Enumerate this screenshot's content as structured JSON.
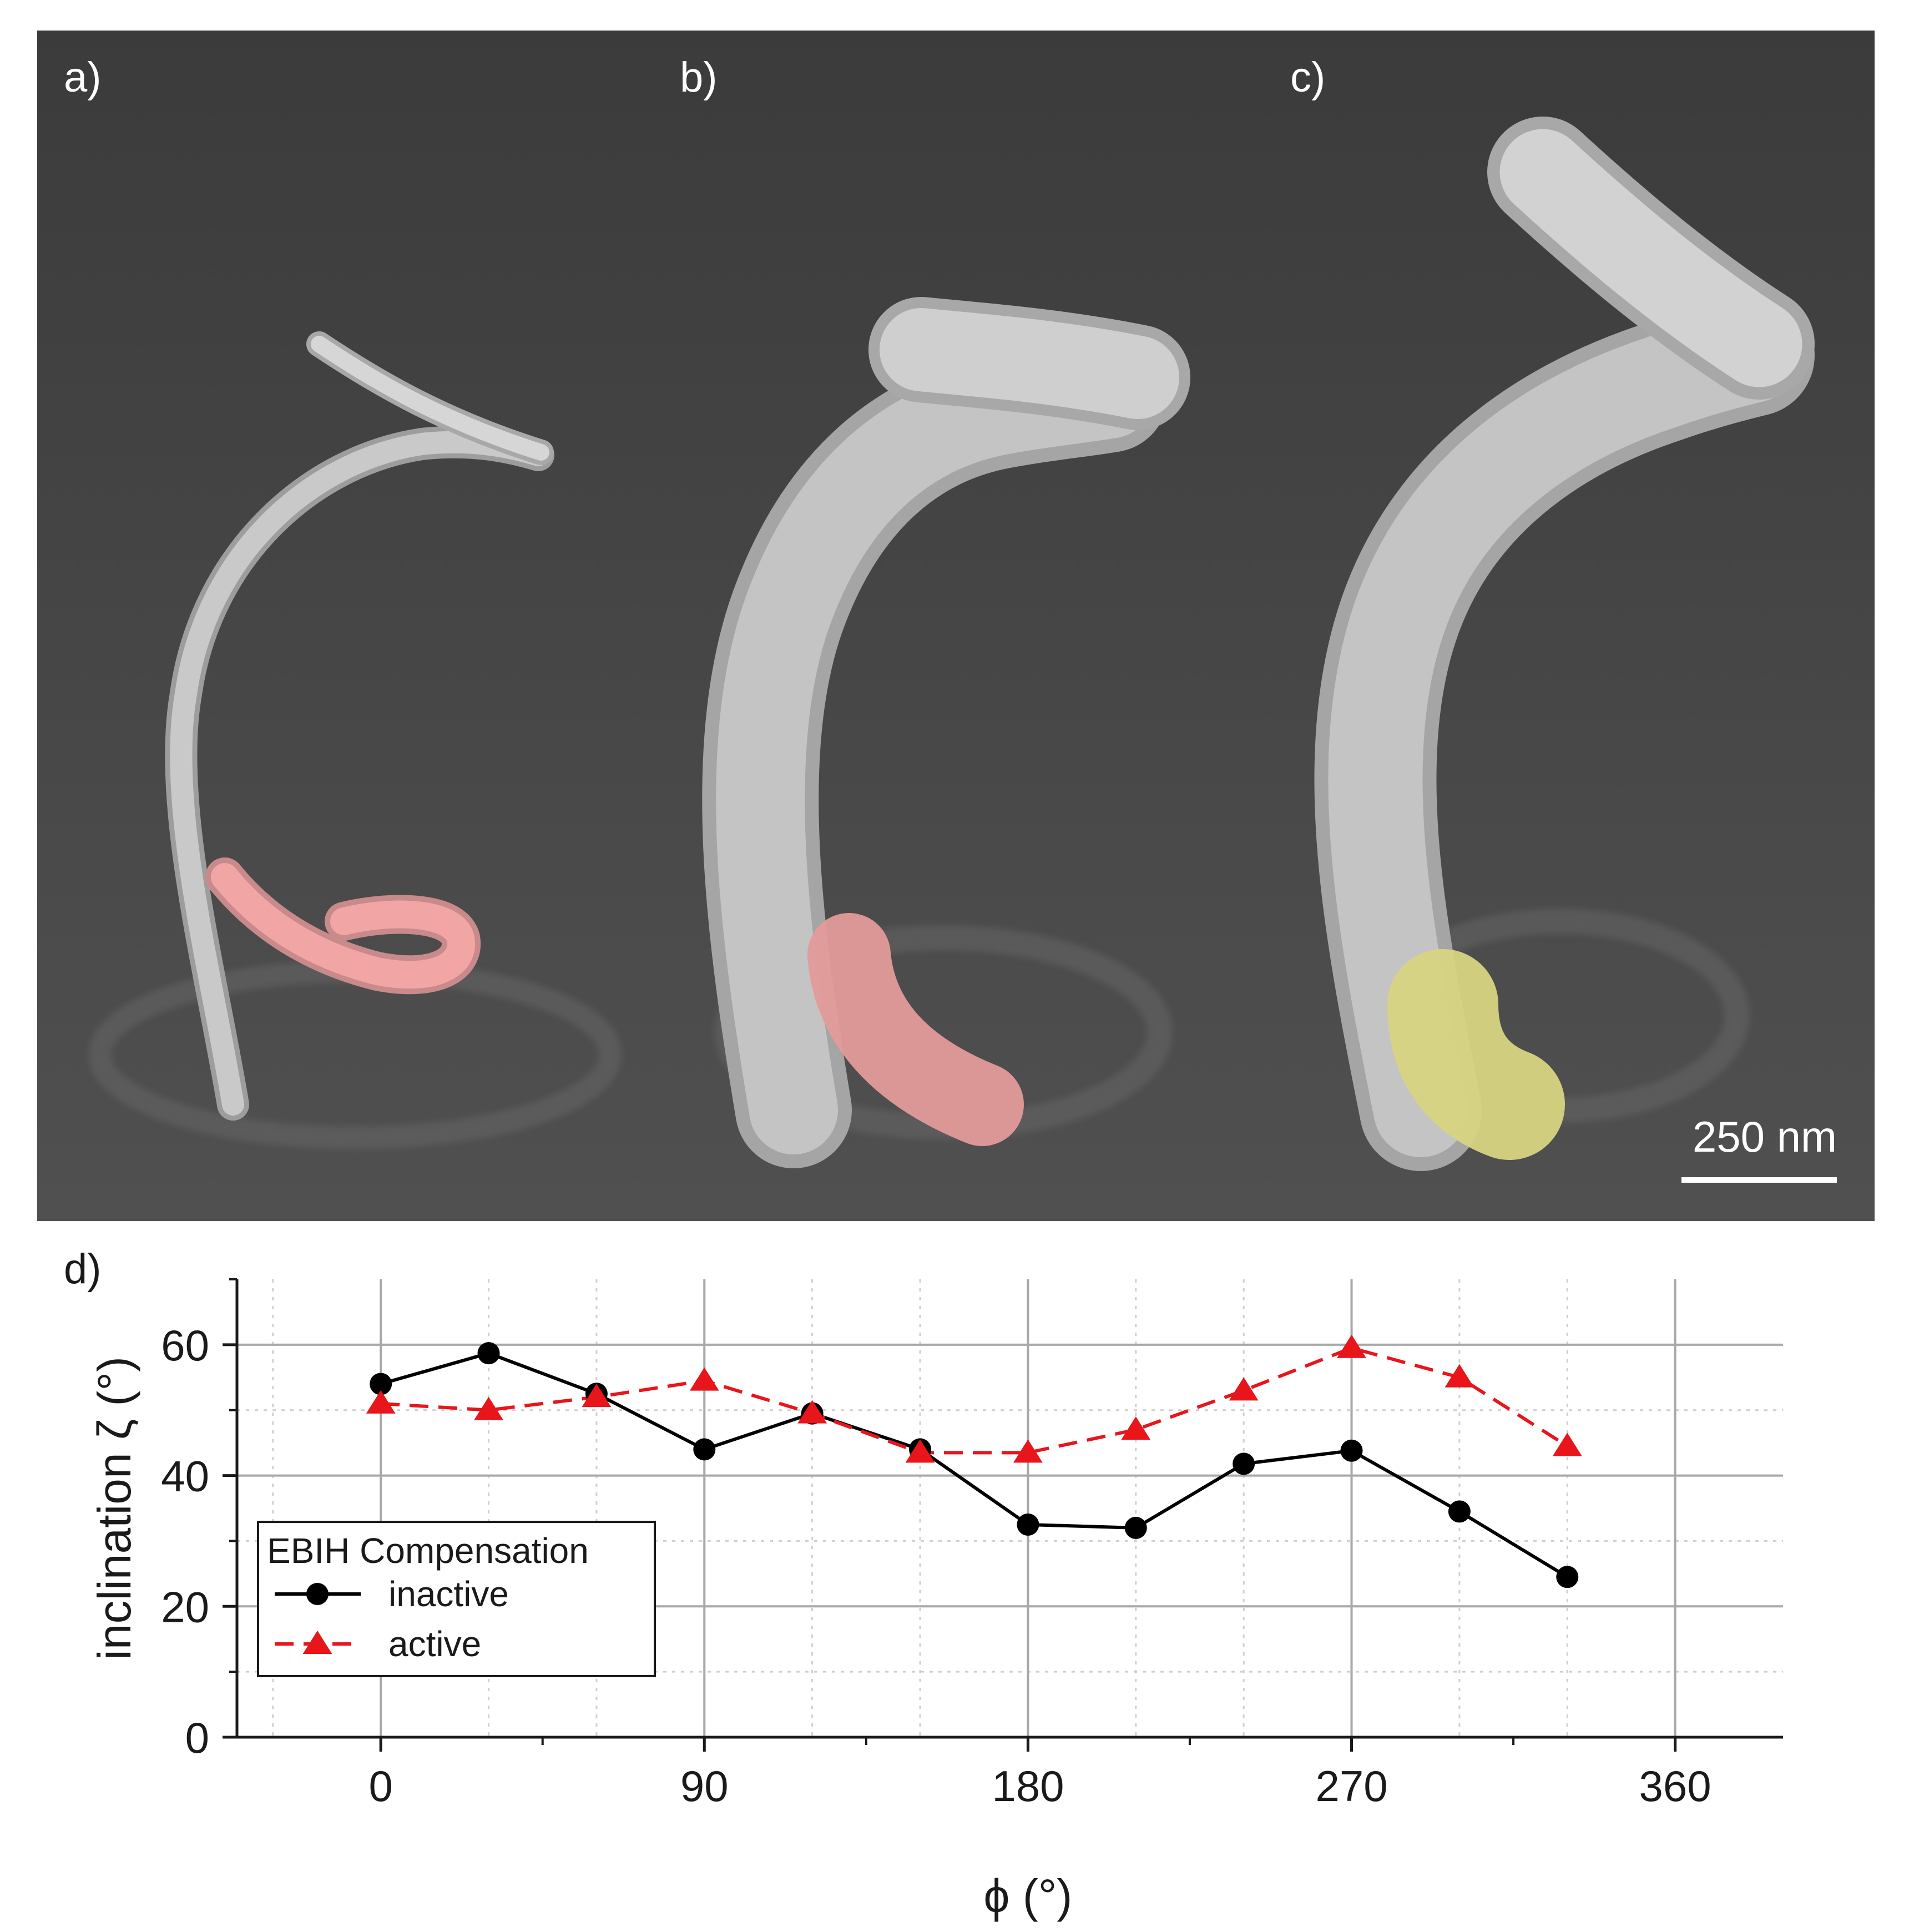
{
  "panels": [
    {
      "label": "a)",
      "highlight_color": "#f2a5a5"
    },
    {
      "label": "b)",
      "highlight_color": "#f2a5a5"
    },
    {
      "label": "c)",
      "highlight_color": "#e6e08a"
    }
  ],
  "scale_bar": {
    "label": "250 nm"
  },
  "chart_label": "d)",
  "chart_data": {
    "type": "line",
    "xlabel": "ϕ (°)",
    "ylabel": "inclination ζ (°)",
    "xlim": [
      -40,
      390
    ],
    "ylim": [
      0,
      70
    ],
    "xticks": [
      0,
      90,
      180,
      270,
      360
    ],
    "yticks": [
      0,
      20,
      40,
      60
    ],
    "grid": true,
    "legend_title": "EBIH Compensation",
    "legend_position": "lower-left",
    "series": [
      {
        "name": "inactive",
        "color": "#000000",
        "marker": "circle",
        "line": "solid",
        "x": [
          0,
          30,
          60,
          90,
          120,
          150,
          180,
          210,
          240,
          270,
          300,
          330
        ],
        "values": [
          54,
          58.7,
          52.5,
          44,
          49.5,
          44,
          32.5,
          32,
          41.8,
          43.8,
          34.5,
          24.5
        ]
      },
      {
        "name": "active",
        "color": "#e8151b",
        "marker": "triangle",
        "line": "dashed",
        "x": [
          0,
          30,
          60,
          90,
          120,
          150,
          180,
          210,
          240,
          270,
          300,
          330
        ],
        "values": [
          51,
          50,
          52,
          54.5,
          49.5,
          43.5,
          43.5,
          47,
          53,
          59.5,
          55,
          44.5
        ]
      }
    ]
  }
}
